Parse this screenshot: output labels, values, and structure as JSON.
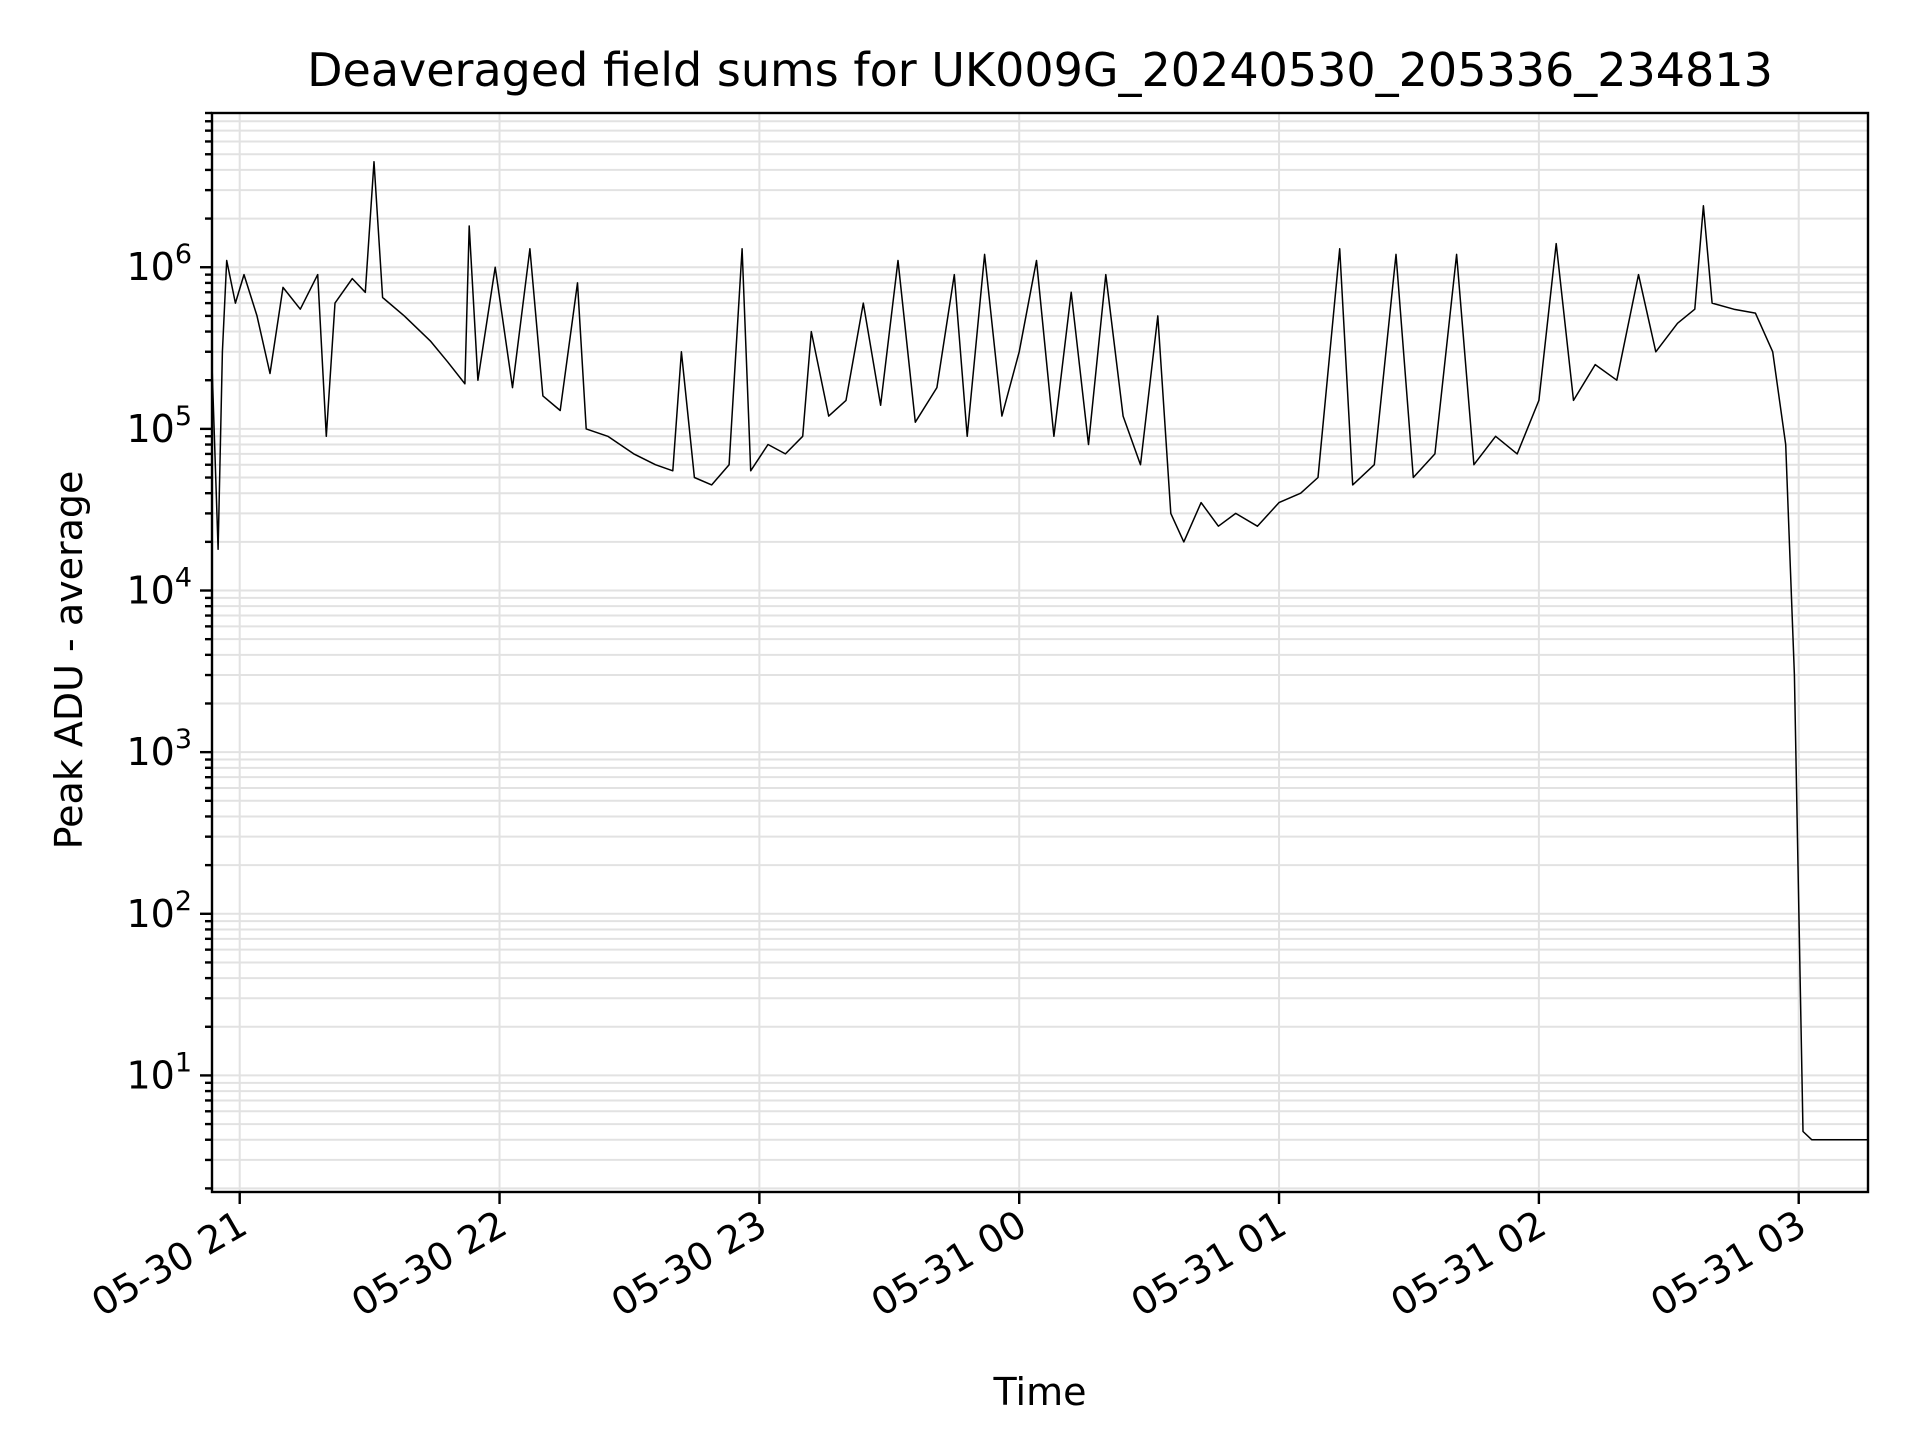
{
  "chart_data": {
    "type": "line",
    "title": "Deaveraged field sums for UK009G_20240530_205336_234813",
    "xlabel": "Time",
    "ylabel": "Peak ADU - average",
    "y_scale": "log",
    "ylim": [
      1.9,
      9000000
    ],
    "xlim": [
      "2024-05-30 20:53:36",
      "2024-05-31 03:16:00"
    ],
    "grid": true,
    "x_ticks": [
      {
        "t": "2024-05-30 21:00",
        "label": "05-30 21"
      },
      {
        "t": "2024-05-30 22:00",
        "label": "05-30 22"
      },
      {
        "t": "2024-05-30 23:00",
        "label": "05-30 23"
      },
      {
        "t": "2024-05-31 00:00",
        "label": "05-31 00"
      },
      {
        "t": "2024-05-31 01:00",
        "label": "05-31 01"
      },
      {
        "t": "2024-05-31 02:00",
        "label": "05-31 02"
      },
      {
        "t": "2024-05-31 03:00",
        "label": "05-31 03"
      }
    ],
    "y_ticks": [
      {
        "value": 10,
        "base": "10",
        "exp": "1"
      },
      {
        "value": 100,
        "base": "10",
        "exp": "2"
      },
      {
        "value": 1000,
        "base": "10",
        "exp": "3"
      },
      {
        "value": 10000,
        "base": "10",
        "exp": "4"
      },
      {
        "value": 100000,
        "base": "10",
        "exp": "5"
      },
      {
        "value": 1000000,
        "base": "10",
        "exp": "6"
      }
    ],
    "series": [
      {
        "color": "#000000",
        "points": [
          [
            "2024-05-30 20:53:36",
            250000
          ],
          [
            "2024-05-30 20:55:00",
            18000
          ],
          [
            "2024-05-30 20:56:00",
            300000
          ],
          [
            "2024-05-30 20:57:00",
            1100000
          ],
          [
            "2024-05-30 20:59:00",
            600000
          ],
          [
            "2024-05-30 21:01:00",
            900000
          ],
          [
            "2024-05-30 21:04:00",
            500000
          ],
          [
            "2024-05-30 21:07:00",
            220000
          ],
          [
            "2024-05-30 21:10:00",
            750000
          ],
          [
            "2024-05-30 21:14:00",
            550000
          ],
          [
            "2024-05-30 21:18:00",
            900000
          ],
          [
            "2024-05-30 21:20:00",
            90000
          ],
          [
            "2024-05-30 21:22:00",
            600000
          ],
          [
            "2024-05-30 21:26:00",
            850000
          ],
          [
            "2024-05-30 21:29:00",
            700000
          ],
          [
            "2024-05-30 21:31:00",
            4500000
          ],
          [
            "2024-05-30 21:33:00",
            650000
          ],
          [
            "2024-05-30 21:38:00",
            500000
          ],
          [
            "2024-05-30 21:44:00",
            350000
          ],
          [
            "2024-05-30 21:48:00",
            260000
          ],
          [
            "2024-05-30 21:52:00",
            190000
          ],
          [
            "2024-05-30 21:53:00",
            1800000
          ],
          [
            "2024-05-30 21:55:00",
            200000
          ],
          [
            "2024-05-30 21:59:00",
            1000000
          ],
          [
            "2024-05-30 22:03:00",
            180000
          ],
          [
            "2024-05-30 22:07:00",
            1300000
          ],
          [
            "2024-05-30 22:10:00",
            160000
          ],
          [
            "2024-05-30 22:14:00",
            130000
          ],
          [
            "2024-05-30 22:18:00",
            800000
          ],
          [
            "2024-05-30 22:20:00",
            100000
          ],
          [
            "2024-05-30 22:25:00",
            90000
          ],
          [
            "2024-05-30 22:31:00",
            70000
          ],
          [
            "2024-05-30 22:36:00",
            60000
          ],
          [
            "2024-05-30 22:40:00",
            55000
          ],
          [
            "2024-05-30 22:42:00",
            300000
          ],
          [
            "2024-05-30 22:45:00",
            50000
          ],
          [
            "2024-05-30 22:49:00",
            45000
          ],
          [
            "2024-05-30 22:53:00",
            60000
          ],
          [
            "2024-05-30 22:56:00",
            1300000
          ],
          [
            "2024-05-30 22:58:00",
            55000
          ],
          [
            "2024-05-30 23:02:00",
            80000
          ],
          [
            "2024-05-30 23:06:00",
            70000
          ],
          [
            "2024-05-30 23:10:00",
            90000
          ],
          [
            "2024-05-30 23:12:00",
            400000
          ],
          [
            "2024-05-30 23:16:00",
            120000
          ],
          [
            "2024-05-30 23:20:00",
            150000
          ],
          [
            "2024-05-30 23:24:00",
            600000
          ],
          [
            "2024-05-30 23:28:00",
            140000
          ],
          [
            "2024-05-30 23:32:00",
            1100000
          ],
          [
            "2024-05-30 23:36:00",
            110000
          ],
          [
            "2024-05-30 23:41:00",
            180000
          ],
          [
            "2024-05-30 23:45:00",
            900000
          ],
          [
            "2024-05-30 23:48:00",
            90000
          ],
          [
            "2024-05-30 23:52:00",
            1200000
          ],
          [
            "2024-05-30 23:56:00",
            120000
          ],
          [
            "2024-05-31 00:00:00",
            300000
          ],
          [
            "2024-05-31 00:04:00",
            1100000
          ],
          [
            "2024-05-31 00:08:00",
            90000
          ],
          [
            "2024-05-31 00:12:00",
            700000
          ],
          [
            "2024-05-31 00:16:00",
            80000
          ],
          [
            "2024-05-31 00:20:00",
            900000
          ],
          [
            "2024-05-31 00:24:00",
            120000
          ],
          [
            "2024-05-31 00:28:00",
            60000
          ],
          [
            "2024-05-31 00:32:00",
            500000
          ],
          [
            "2024-05-31 00:35:00",
            30000
          ],
          [
            "2024-05-31 00:38:00",
            20000
          ],
          [
            "2024-05-31 00:42:00",
            35000
          ],
          [
            "2024-05-31 00:46:00",
            25000
          ],
          [
            "2024-05-31 00:50:00",
            30000
          ],
          [
            "2024-05-31 00:55:00",
            25000
          ],
          [
            "2024-05-31 01:00:00",
            35000
          ],
          [
            "2024-05-31 01:05:00",
            40000
          ],
          [
            "2024-05-31 01:09:00",
            50000
          ],
          [
            "2024-05-31 01:14:00",
            1300000
          ],
          [
            "2024-05-31 01:17:00",
            45000
          ],
          [
            "2024-05-31 01:22:00",
            60000
          ],
          [
            "2024-05-31 01:27:00",
            1200000
          ],
          [
            "2024-05-31 01:31:00",
            50000
          ],
          [
            "2024-05-31 01:36:00",
            70000
          ],
          [
            "2024-05-31 01:41:00",
            1200000
          ],
          [
            "2024-05-31 01:45:00",
            60000
          ],
          [
            "2024-05-31 01:50:00",
            90000
          ],
          [
            "2024-05-31 01:55:00",
            70000
          ],
          [
            "2024-05-31 02:00:00",
            150000
          ],
          [
            "2024-05-31 02:04:00",
            1400000
          ],
          [
            "2024-05-31 02:08:00",
            150000
          ],
          [
            "2024-05-31 02:13:00",
            250000
          ],
          [
            "2024-05-31 02:18:00",
            200000
          ],
          [
            "2024-05-31 02:23:00",
            900000
          ],
          [
            "2024-05-31 02:27:00",
            300000
          ],
          [
            "2024-05-31 02:32:00",
            450000
          ],
          [
            "2024-05-31 02:36:00",
            550000
          ],
          [
            "2024-05-31 02:38:00",
            2400000
          ],
          [
            "2024-05-31 02:40:00",
            600000
          ],
          [
            "2024-05-31 02:45:00",
            550000
          ],
          [
            "2024-05-31 02:50:00",
            520000
          ],
          [
            "2024-05-31 02:54:00",
            300000
          ],
          [
            "2024-05-31 02:57:00",
            80000
          ],
          [
            "2024-05-31 02:59:00",
            3000
          ],
          [
            "2024-05-31 03:01:00",
            4.5
          ],
          [
            "2024-05-31 03:03:00",
            4.0
          ],
          [
            "2024-05-31 03:16:00",
            4.0
          ]
        ]
      }
    ]
  }
}
